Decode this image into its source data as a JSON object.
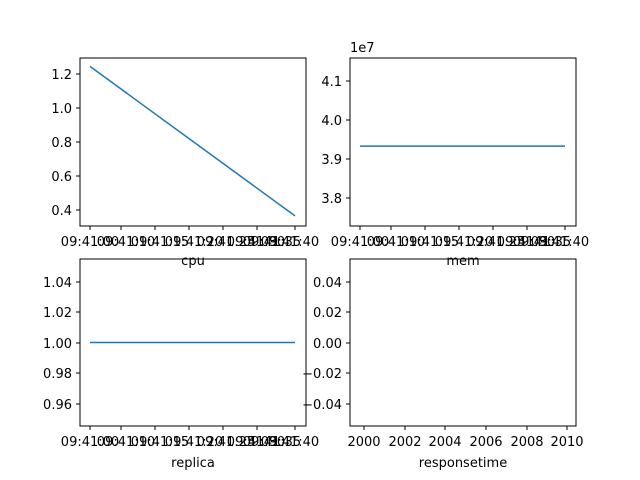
{
  "chart_data": [
    {
      "type": "line",
      "xlabel": "cpu",
      "ylabel": "",
      "x_tick_labels": [
        "09:41:00",
        "09:41:10",
        "09:41:15",
        "09:41:20",
        "09:41:25",
        "09:41:30",
        "09:41:35",
        "09:41:40"
      ],
      "x": [
        "09:41:00",
        "09:41:40"
      ],
      "series": [
        {
          "values": [
            1.25,
            0.36
          ]
        }
      ],
      "xlim": [
        "09:41:00",
        "09:41:40"
      ],
      "ylim": [
        0.3,
        1.3
      ],
      "y_ticks": [
        "0.4",
        "0.6",
        "0.8",
        "1.0",
        "1.2"
      ],
      "grid": false,
      "color": "#1f77b4"
    },
    {
      "type": "line",
      "xlabel": "mem",
      "ylabel": "",
      "x_tick_labels": [
        "09:41:00",
        "09:41:10",
        "09:41:15",
        "09:41:20",
        "09:41:25",
        "09:41:30",
        "09:41:35",
        "09:41:40"
      ],
      "x": [
        "09:41:00",
        "09:41:40"
      ],
      "series": [
        {
          "values": [
            3.945,
            3.945
          ]
        }
      ],
      "y_offset_label": "1e7",
      "xlim": [
        "09:41:00",
        "09:41:40"
      ],
      "ylim": [
        3.75,
        4.16
      ],
      "y_ticks": [
        "3.8",
        "3.9",
        "4.0",
        "4.1"
      ],
      "grid": false,
      "color": "#1f77b4"
    },
    {
      "type": "line",
      "xlabel": "replica",
      "ylabel": "",
      "x_tick_labels": [
        "09:41:00",
        "09:41:10",
        "09:41:15",
        "09:41:20",
        "09:41:25",
        "09:41:30",
        "09:41:35",
        "09:41:40"
      ],
      "x": [
        "09:41:00",
        "09:41:40"
      ],
      "series": [
        {
          "values": [
            1.0,
            1.0
          ]
        }
      ],
      "xlim": [
        "09:41:00",
        "09:41:40"
      ],
      "ylim": [
        0.945,
        1.055
      ],
      "y_ticks": [
        "0.96",
        "0.98",
        "1.00",
        "1.02",
        "1.04"
      ],
      "grid": false,
      "color": "#1f77b4"
    },
    {
      "type": "line",
      "xlabel": "responsetime",
      "ylabel": "",
      "x_tick_labels": [
        "2000",
        "2002",
        "2004",
        "2006",
        "2008",
        "2010"
      ],
      "series": [],
      "xlim": [
        1999.5,
        2010.5
      ],
      "ylim": [
        -0.055,
        0.055
      ],
      "y_ticks": [
        "0.04",
        "0.02",
        "0.00",
        "−0.02",
        "−0.04"
      ],
      "grid": false
    }
  ]
}
